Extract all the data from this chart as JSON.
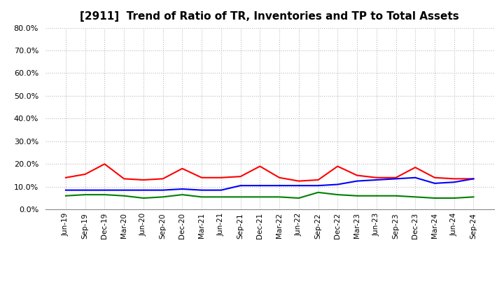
{
  "title": "[2911]  Trend of Ratio of TR, Inventories and TP to Total Assets",
  "x_labels": [
    "Jun-19",
    "Sep-19",
    "Dec-19",
    "Mar-20",
    "Jun-20",
    "Sep-20",
    "Dec-20",
    "Mar-21",
    "Jun-21",
    "Sep-21",
    "Dec-21",
    "Mar-22",
    "Jun-22",
    "Sep-22",
    "Dec-22",
    "Mar-23",
    "Jun-23",
    "Sep-23",
    "Dec-23",
    "Mar-24",
    "Jun-24",
    "Sep-24"
  ],
  "trade_receivables": [
    14.0,
    15.5,
    20.0,
    13.5,
    13.0,
    13.5,
    18.0,
    14.0,
    14.0,
    14.5,
    19.0,
    14.0,
    12.5,
    13.0,
    19.0,
    15.0,
    14.0,
    14.0,
    18.5,
    14.0,
    13.5,
    13.5
  ],
  "inventories": [
    8.5,
    8.5,
    8.5,
    8.5,
    8.5,
    8.5,
    9.0,
    8.5,
    8.5,
    10.5,
    10.5,
    10.5,
    10.5,
    10.5,
    11.0,
    12.5,
    13.0,
    13.5,
    14.0,
    11.5,
    12.0,
    13.5
  ],
  "trade_payables": [
    6.0,
    6.5,
    6.5,
    6.0,
    5.0,
    5.5,
    6.5,
    5.5,
    5.5,
    5.5,
    5.5,
    5.5,
    5.0,
    7.5,
    6.5,
    6.0,
    6.0,
    6.0,
    5.5,
    5.0,
    5.0,
    5.5
  ],
  "colors": {
    "trade_receivables": "#FF0000",
    "inventories": "#0000FF",
    "trade_payables": "#008000"
  },
  "ylim": [
    0,
    80
  ],
  "yticks": [
    0,
    10,
    20,
    30,
    40,
    50,
    60,
    70,
    80
  ],
  "background_color": "#FFFFFF",
  "grid_color": "#BBBBBB"
}
